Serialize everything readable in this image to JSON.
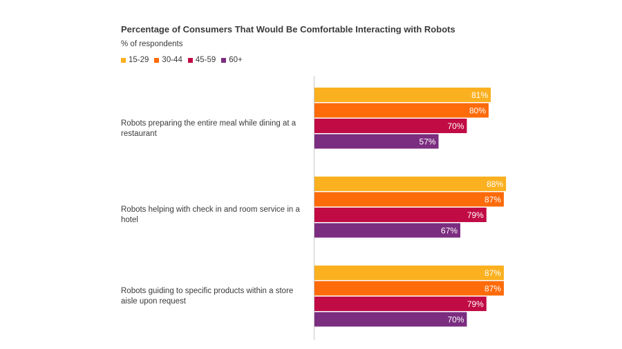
{
  "chart_data": {
    "type": "bar",
    "orientation": "horizontal",
    "title": "Percentage of Consumers That Would Be Comfortable Interacting with Robots",
    "subtitle": "% of respondents",
    "categories": [
      "Robots preparing the entire meal while dining at a restaurant",
      "Robots helping with check in and room service in a hotel",
      "Robots guiding to specific products within a store aisle upon request"
    ],
    "series": [
      {
        "name": "15-29",
        "color": "#fbb01f",
        "values": [
          81,
          88,
          87
        ]
      },
      {
        "name": "30-44",
        "color": "#fd6b0a",
        "values": [
          80,
          87,
          87
        ]
      },
      {
        "name": "45-59",
        "color": "#c10b45",
        "values": [
          70,
          79,
          79
        ]
      },
      {
        "name": "60+",
        "color": "#7b2d7f",
        "values": [
          57,
          67,
          70
        ]
      }
    ],
    "value_suffix": "%",
    "xlim": [
      0,
      100
    ],
    "grid": false,
    "legend_position": "top-left"
  }
}
